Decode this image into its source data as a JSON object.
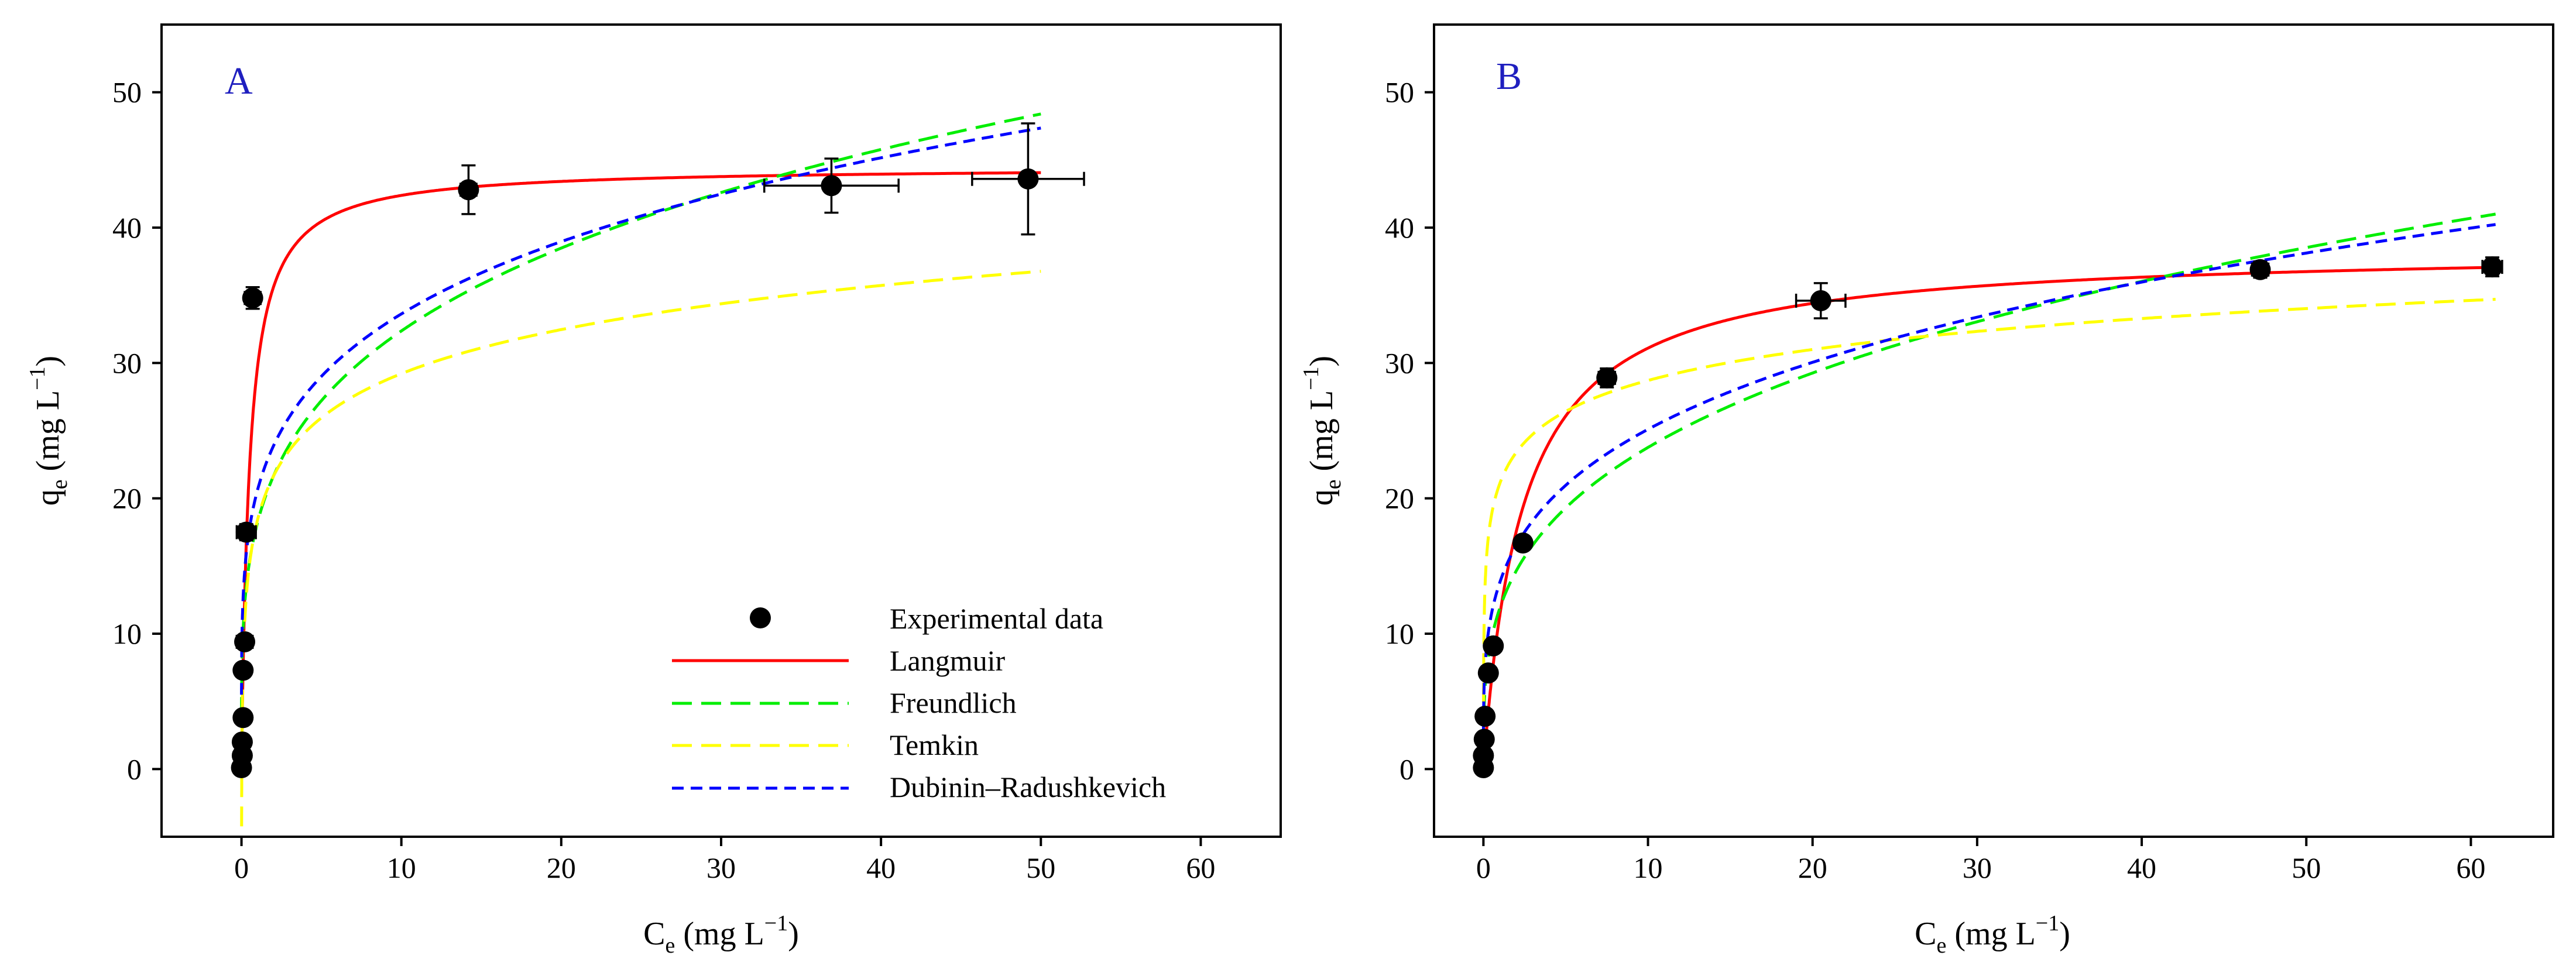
{
  "chart_data": [
    {
      "type": "scatter",
      "panel_label": "A",
      "xlabel": "Ce (mg L−1)",
      "ylabel": "qe (mg L−1)",
      "xlim": [
        -5,
        65
      ],
      "ylim": [
        -5,
        55
      ],
      "xticks": [
        0,
        10,
        20,
        30,
        40,
        50,
        60
      ],
      "yticks": [
        0,
        10,
        20,
        30,
        40,
        50
      ],
      "legend_position": "bottom-right",
      "experimental": [
        {
          "x": 0.0,
          "y": 0.1,
          "xerr": 0.2,
          "yerr": 0.4
        },
        {
          "x": 0.05,
          "y": 1.0,
          "xerr": 0.2,
          "yerr": 0.4
        },
        {
          "x": 0.05,
          "y": 2.0,
          "xerr": 0.2,
          "yerr": 0.4
        },
        {
          "x": 0.1,
          "y": 3.8,
          "xerr": 0.3,
          "yerr": 0.4
        },
        {
          "x": 0.1,
          "y": 7.3,
          "xerr": 0.4,
          "yerr": 0.4
        },
        {
          "x": 0.2,
          "y": 9.4,
          "xerr": 0.5,
          "yerr": 0.4
        },
        {
          "x": 0.3,
          "y": 17.5,
          "xerr": 0.6,
          "yerr": 0.6
        },
        {
          "x": 0.7,
          "y": 34.8,
          "xerr": 0.5,
          "yerr": 0.8
        },
        {
          "x": 14.2,
          "y": 42.8,
          "xerr": 0.5,
          "yerr": 1.8
        },
        {
          "x": 36.9,
          "y": 43.1,
          "xerr": 4.2,
          "yerr": 2.0
        },
        {
          "x": 49.2,
          "y": 43.6,
          "xerr": 3.5,
          "yerr": 4.1
        }
      ],
      "curves": [
        {
          "name": "Langmuir",
          "model": "langmuir",
          "qmax": 44.5,
          "K": 2.0,
          "color": "#ff0000",
          "dash": "solid",
          "xmax": 50
        },
        {
          "name": "Freundlich",
          "model": "freundlich",
          "K": 18.2,
          "n": 4.0,
          "color": "#00ee00",
          "dash": "long",
          "xmax": 50
        },
        {
          "name": "Temkin",
          "model": "temkin",
          "B": 4.7,
          "A": 50,
          "color": "#ffff00",
          "dash": "long",
          "xmax": 50
        },
        {
          "name": "Dubinin–Radushkevich",
          "model": "freundlich",
          "K": 20.6,
          "n": 4.7,
          "color": "#0000ff",
          "dash": "short",
          "xmax": 50
        }
      ]
    },
    {
      "type": "scatter",
      "panel_label": "B",
      "xlabel": "Ce (mg L−1)",
      "ylabel": "qe (mg L−1)",
      "xlim": [
        -3,
        65
      ],
      "ylim": [
        -5,
        55
      ],
      "xticks": [
        0,
        10,
        20,
        30,
        40,
        50,
        60
      ],
      "yticks": [
        0,
        10,
        20,
        30,
        40,
        50
      ],
      "experimental": [
        {
          "x": 0.0,
          "y": 0.1,
          "xerr": 0.2,
          "yerr": 0.4
        },
        {
          "x": 0.0,
          "y": 1.0,
          "xerr": 0.2,
          "yerr": 0.4
        },
        {
          "x": 0.05,
          "y": 2.2,
          "xerr": 0.2,
          "yerr": 0.4
        },
        {
          "x": 0.1,
          "y": 3.9,
          "xerr": 0.3,
          "yerr": 0.4
        },
        {
          "x": 0.3,
          "y": 7.1,
          "xerr": 0.3,
          "yerr": 0.4
        },
        {
          "x": 0.6,
          "y": 9.1,
          "xerr": 0.3,
          "yerr": 0.4
        },
        {
          "x": 2.4,
          "y": 16.7,
          "xerr": 0.4,
          "yerr": 0.5
        },
        {
          "x": 7.5,
          "y": 28.9,
          "xerr": 0.5,
          "yerr": 0.7
        },
        {
          "x": 20.5,
          "y": 34.6,
          "xerr": 1.5,
          "yerr": 1.3
        },
        {
          "x": 47.2,
          "y": 36.9,
          "xerr": 0.5,
          "yerr": 0.6
        },
        {
          "x": 61.3,
          "y": 37.1,
          "xerr": 0.6,
          "yerr": 0.7
        }
      ],
      "curves": [
        {
          "name": "Langmuir",
          "model": "langmuir",
          "qmax": 38.5,
          "K": 0.42,
          "color": "#ff0000",
          "dash": "solid",
          "xmax": 61.5
        },
        {
          "name": "Freundlich",
          "model": "freundlich",
          "K": 11.9,
          "n": 3.33,
          "color": "#00ee00",
          "dash": "long",
          "xmax": 61.5
        },
        {
          "name": "Temkin",
          "model": "temkin",
          "B": 3.3,
          "A": 600,
          "color": "#ffff00",
          "dash": "long",
          "xmax": 61.5
        },
        {
          "name": "Dubinin–Radushkevich",
          "model": "freundlich",
          "K": 13.8,
          "n": 3.85,
          "color": "#0000ff",
          "dash": "short",
          "xmax": 61.5
        }
      ]
    }
  ],
  "legend": {
    "experimental_label": "Experimental data",
    "entries": [
      {
        "label": "Langmuir",
        "color": "#ff0000",
        "dash": "solid"
      },
      {
        "label": "Freundlich",
        "color": "#00ee00",
        "dash": "long"
      },
      {
        "label": "Temkin",
        "color": "#ffff00",
        "dash": "long"
      },
      {
        "label": "Dubinin–Radushkevich",
        "color": "#0000ff",
        "dash": "short"
      }
    ]
  },
  "axis_text": {
    "x_main": "C",
    "x_sub": "e",
    "x_unit": " (mg L",
    "x_sup": "−1",
    "x_close": ")",
    "y_main": "q",
    "y_sub": "e",
    "y_unit": " (mg L",
    "y_sup": "−1",
    "y_close": ")"
  },
  "colors": {
    "panel_letter": "#1f1fbf",
    "marker": "#000000"
  }
}
